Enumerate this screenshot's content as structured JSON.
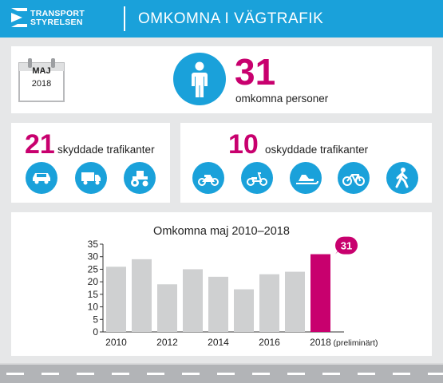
{
  "header": {
    "logo_line1": "TRANSPORT",
    "logo_line2": "STYRELSEN",
    "title": "OMKOMNA I VÄGTRAFIK"
  },
  "summary": {
    "month": "MAJ",
    "year": "2018",
    "total_killed": "31",
    "total_label": "omkomna personer"
  },
  "protected": {
    "count": "21",
    "label": "skyddade trafikanter",
    "icons": [
      "car-icon",
      "truck-icon",
      "tractor-icon"
    ]
  },
  "unprotected": {
    "count": "10",
    "label": "oskyddade trafikanter",
    "icons": [
      "motorcycle-icon",
      "moped-icon",
      "snowmobile-icon",
      "bicycle-icon",
      "pedestrian-icon"
    ]
  },
  "colors": {
    "accent": "#c8006e",
    "brand": "#1aa1da",
    "bar": "#cfd0d1"
  },
  "chart_data": {
    "type": "bar",
    "title": "Omkomna maj 2010–2018",
    "categories": [
      "2010",
      "2011",
      "2012",
      "2013",
      "2014",
      "2015",
      "2016",
      "2017",
      "2018"
    ],
    "values": [
      26,
      29,
      19,
      25,
      22,
      17,
      23,
      24,
      31
    ],
    "highlight_index": 8,
    "highlight_label": "31",
    "x_tick_labels": [
      "2010",
      "2012",
      "2014",
      "2016",
      "2018"
    ],
    "x_note": "(preliminärt)",
    "ylim": [
      0,
      35
    ],
    "y_ticks": [
      0,
      5,
      10,
      15,
      20,
      25,
      30,
      35
    ],
    "grid": false
  }
}
